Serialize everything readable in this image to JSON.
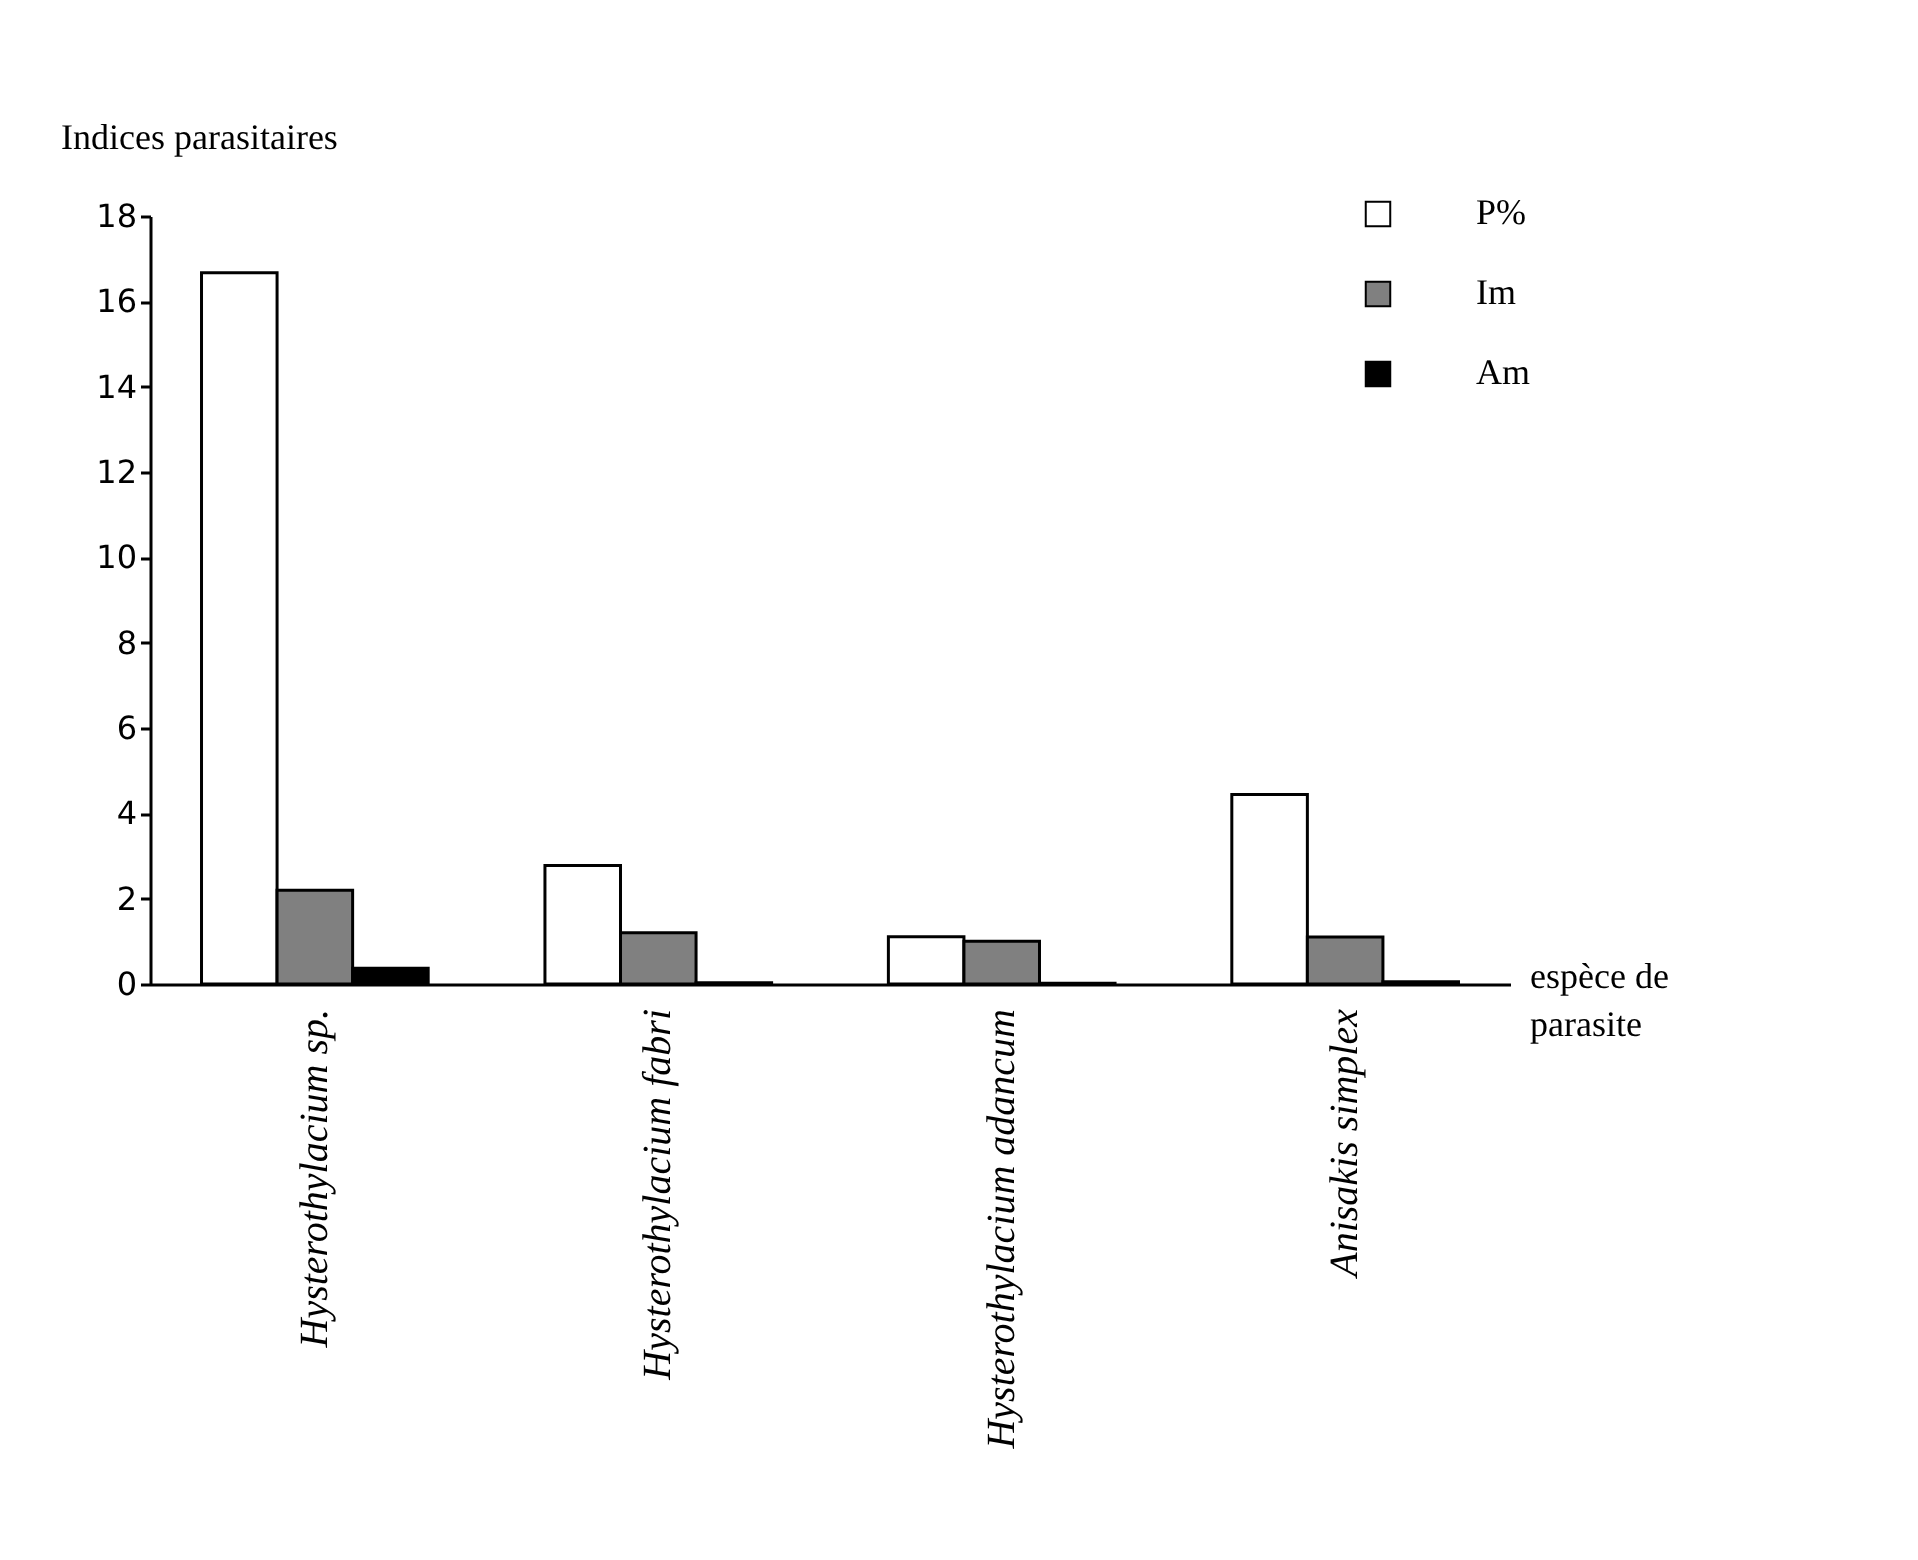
{
  "chart_data": {
    "type": "bar",
    "ylabel": "Indices parasitaires",
    "xlabel": "espèce de parasite",
    "categories": [
      "Hysterothylacium sp.",
      "Hysterothylacium fabri",
      "Hysterothylacium adancum",
      "Anisakis simplex"
    ],
    "series": [
      {
        "name": "P%",
        "color": "#ffffff",
        "values": [
          16.67,
          2.78,
          1.11,
          4.44
        ]
      },
      {
        "name": "Im",
        "color": "#808080",
        "values": [
          2.2,
          1.2,
          1.0,
          1.1
        ]
      },
      {
        "name": "Am",
        "color": "#000000",
        "values": [
          0.37,
          0.03,
          0.02,
          0.05
        ]
      }
    ],
    "ylim": [
      0,
      18
    ],
    "yticks": [
      0,
      2,
      4,
      6,
      8,
      10,
      12,
      14,
      16,
      18
    ],
    "grid": false,
    "legend": "top right"
  }
}
